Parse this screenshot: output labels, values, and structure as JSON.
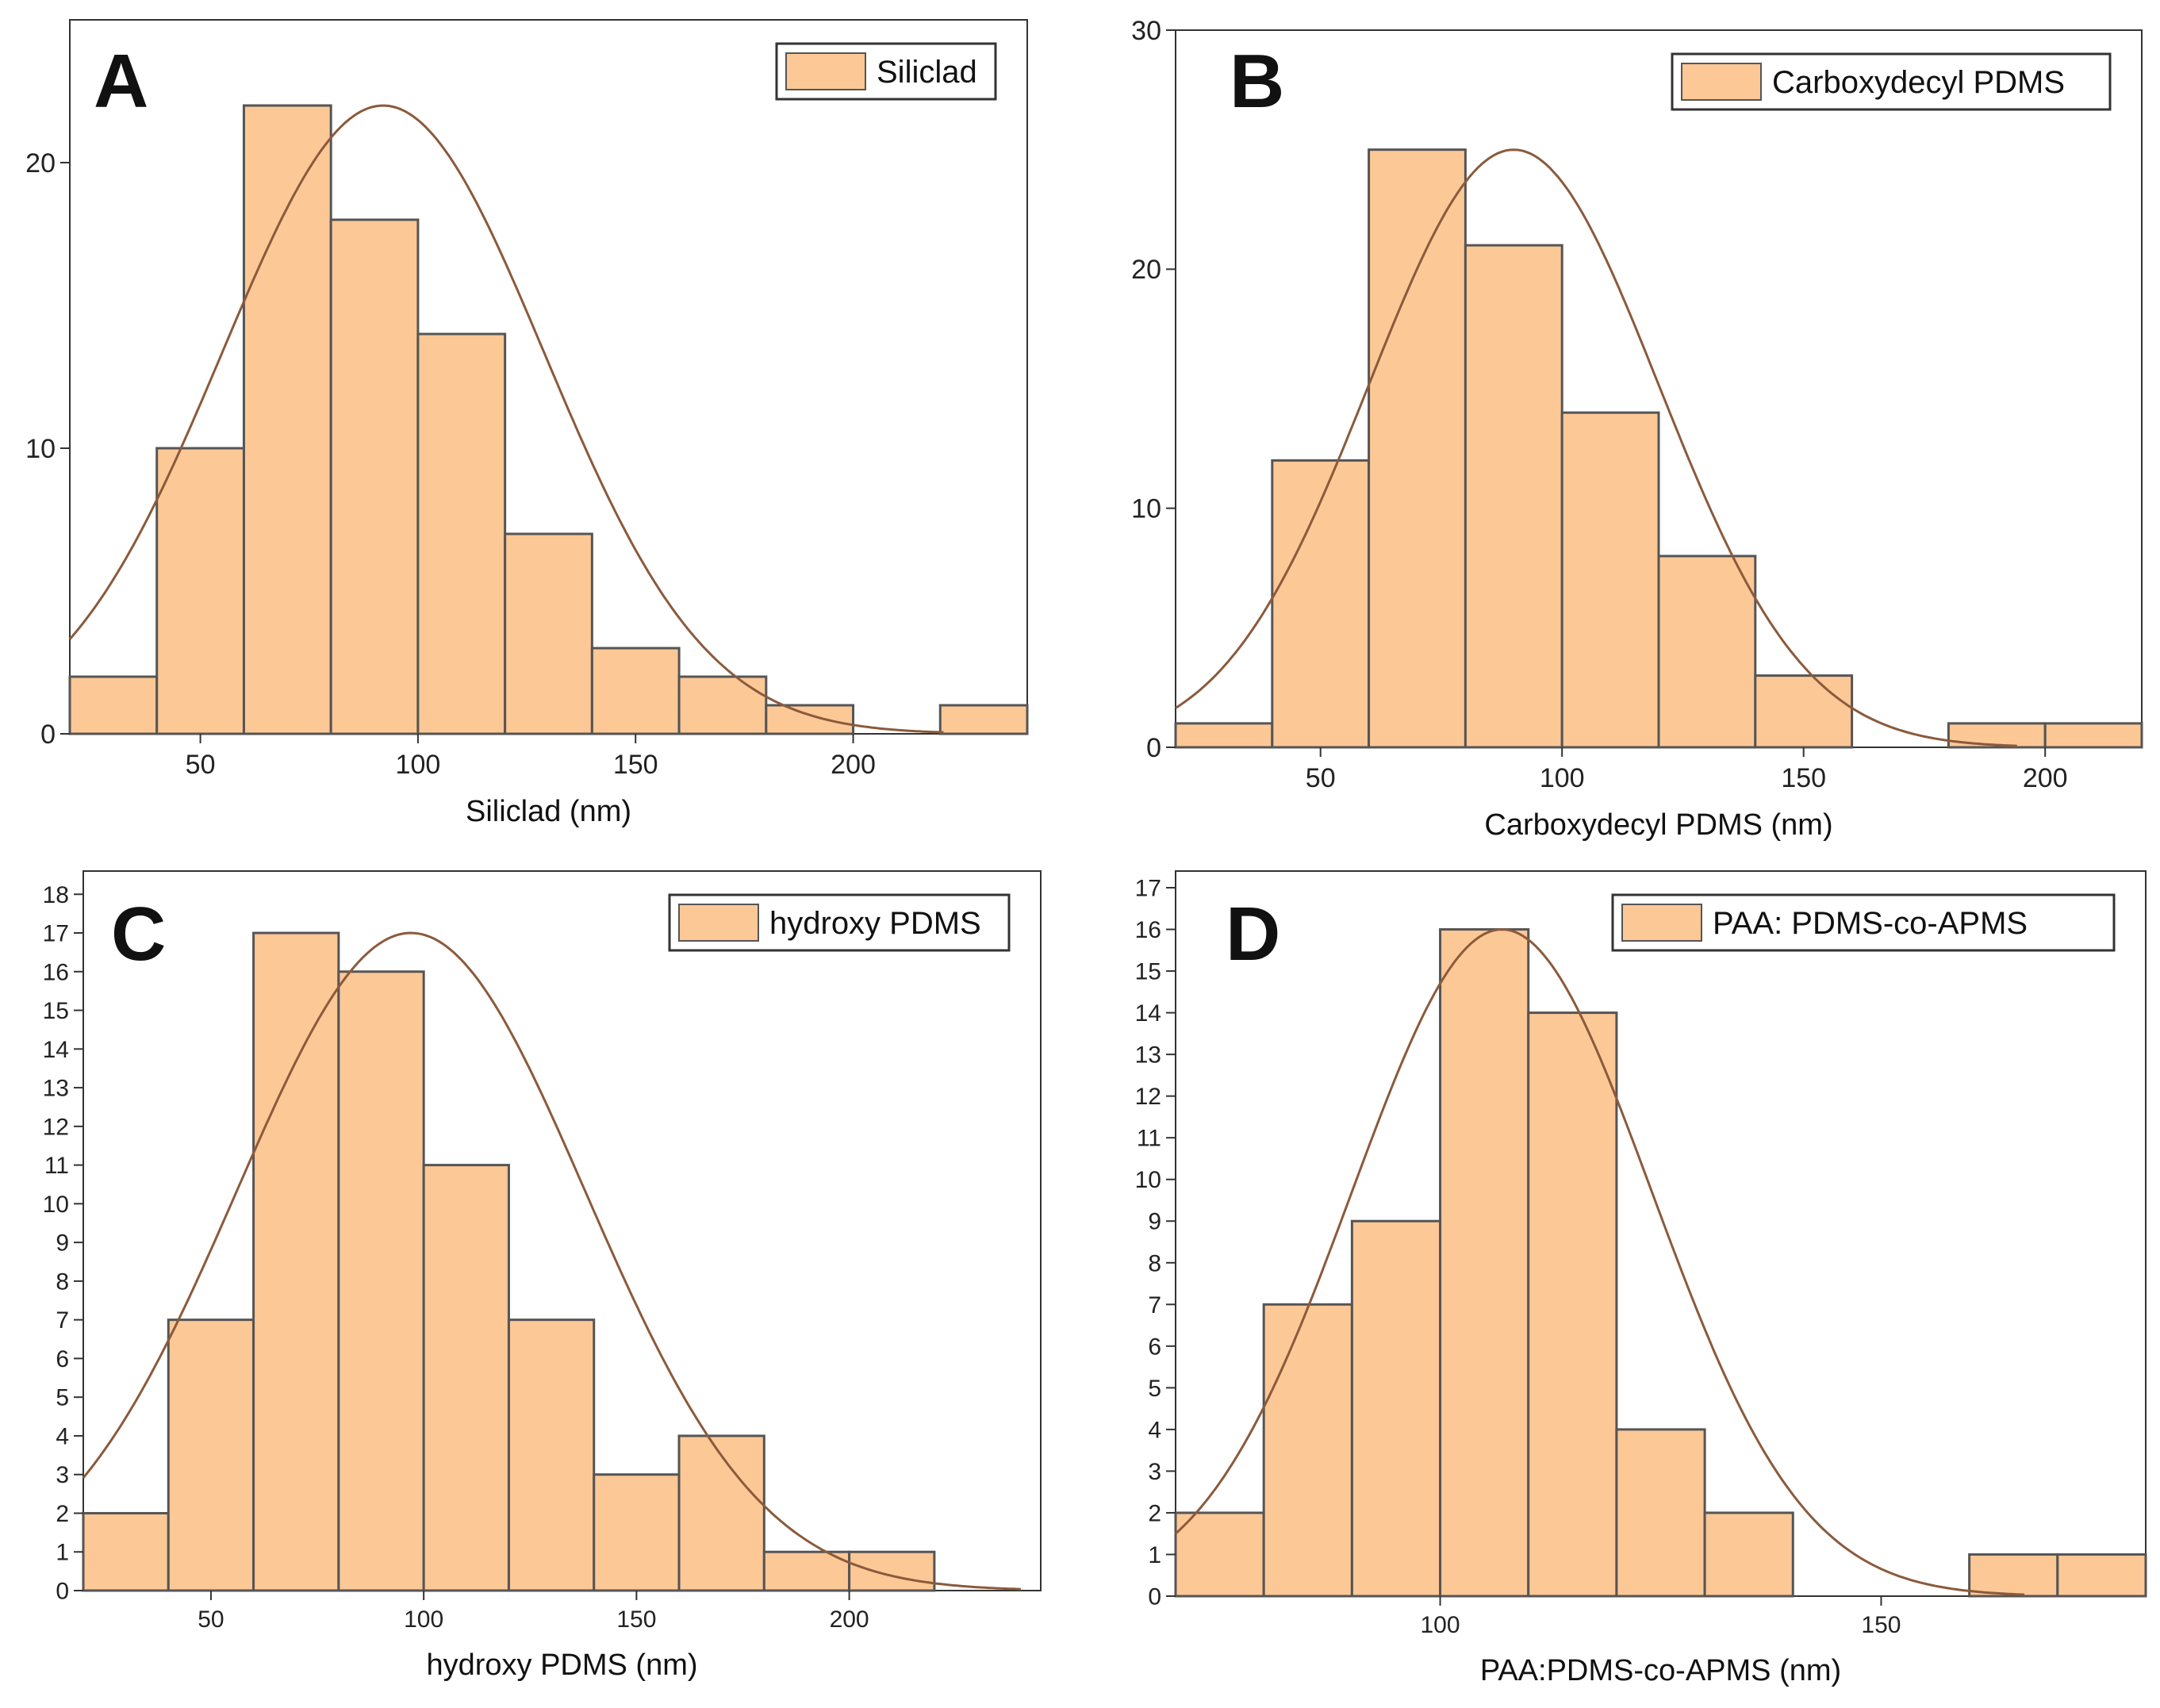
{
  "colors": {
    "bar_fill": "#fcc896",
    "bar_stroke": "#555555",
    "curve": "#8b5a3c",
    "axis": "#333333"
  },
  "chart_data": [
    {
      "panel": "A",
      "type": "bar",
      "title": "",
      "legend": "Siliclad",
      "xlabel": "Siliclad (nm)",
      "ylabel": "",
      "xlim": [
        20,
        240
      ],
      "ylim": [
        0,
        25
      ],
      "xticks": [
        50,
        100,
        150,
        200
      ],
      "yticks": [
        0,
        10,
        20
      ],
      "bins": [
        {
          "x0": 20,
          "x1": 40,
          "count": 2
        },
        {
          "x0": 40,
          "x1": 60,
          "count": 10
        },
        {
          "x0": 60,
          "x1": 80,
          "count": 22
        },
        {
          "x0": 80,
          "x1": 100,
          "count": 18
        },
        {
          "x0": 100,
          "x1": 120,
          "count": 14
        },
        {
          "x0": 120,
          "x1": 140,
          "count": 7
        },
        {
          "x0": 140,
          "x1": 160,
          "count": 3
        },
        {
          "x0": 160,
          "x1": 180,
          "count": 2
        },
        {
          "x0": 180,
          "x1": 200,
          "count": 1
        },
        {
          "x0": 220,
          "x1": 240,
          "count": 1
        }
      ],
      "fit": {
        "type": "gaussian",
        "mean": 92,
        "sd": 37,
        "peak": 22
      }
    },
    {
      "panel": "B",
      "type": "bar",
      "title": "",
      "legend": "Carboxydecyl PDMS",
      "xlabel": "Carboxydecyl PDMS (nm)",
      "ylabel": "",
      "xlim": [
        20,
        220
      ],
      "ylim": [
        0,
        30
      ],
      "xticks": [
        50,
        100,
        150,
        200
      ],
      "yticks": [
        0,
        10,
        20,
        30
      ],
      "bins": [
        {
          "x0": 20,
          "x1": 40,
          "count": 1
        },
        {
          "x0": 40,
          "x1": 60,
          "count": 12
        },
        {
          "x0": 60,
          "x1": 80,
          "count": 25
        },
        {
          "x0": 80,
          "x1": 100,
          "count": 21
        },
        {
          "x0": 100,
          "x1": 120,
          "count": 14
        },
        {
          "x0": 120,
          "x1": 140,
          "count": 8
        },
        {
          "x0": 140,
          "x1": 160,
          "count": 3
        },
        {
          "x0": 180,
          "x1": 200,
          "count": 1
        },
        {
          "x0": 200,
          "x1": 220,
          "count": 1
        }
      ],
      "fit": {
        "type": "gaussian",
        "mean": 90,
        "sd": 30,
        "peak": 25
      }
    },
    {
      "panel": "C",
      "type": "bar",
      "title": "",
      "legend": "hydroxy PDMS",
      "xlabel": "hydroxy PDMS (nm)",
      "ylabel": "",
      "xlim": [
        20,
        245
      ],
      "ylim": [
        0,
        18.6
      ],
      "xticks": [
        50,
        100,
        150,
        200
      ],
      "yticks": [
        0,
        1,
        2,
        3,
        4,
        5,
        6,
        7,
        8,
        9,
        10,
        11,
        12,
        13,
        14,
        15,
        16,
        17,
        18
      ],
      "bins": [
        {
          "x0": 20,
          "x1": 40,
          "count": 2
        },
        {
          "x0": 40,
          "x1": 60,
          "count": 7
        },
        {
          "x0": 60,
          "x1": 80,
          "count": 17
        },
        {
          "x0": 80,
          "x1": 100,
          "count": 16
        },
        {
          "x0": 100,
          "x1": 120,
          "count": 11
        },
        {
          "x0": 120,
          "x1": 140,
          "count": 7
        },
        {
          "x0": 140,
          "x1": 160,
          "count": 3
        },
        {
          "x0": 160,
          "x1": 180,
          "count": 4
        },
        {
          "x0": 180,
          "x1": 200,
          "count": 1
        },
        {
          "x0": 200,
          "x1": 220,
          "count": 1
        }
      ],
      "fit": {
        "type": "gaussian",
        "mean": 97,
        "sd": 41,
        "peak": 17
      }
    },
    {
      "panel": "D",
      "type": "bar",
      "title": "",
      "legend": "PAA: PDMS-co-APMS",
      "xlabel": "PAA:PDMS-co-APMS  (nm)",
      "ylabel": "",
      "xlim": [
        70,
        180
      ],
      "ylim": [
        0,
        17.4
      ],
      "xticks": [
        100,
        150
      ],
      "yticks": [
        0,
        1,
        2,
        3,
        4,
        5,
        6,
        7,
        8,
        9,
        10,
        11,
        12,
        13,
        14,
        15,
        16,
        17
      ],
      "bins": [
        {
          "x0": 70,
          "x1": 80,
          "count": 2
        },
        {
          "x0": 80,
          "x1": 90,
          "count": 7
        },
        {
          "x0": 90,
          "x1": 100,
          "count": 9
        },
        {
          "x0": 100,
          "x1": 110,
          "count": 16
        },
        {
          "x0": 110,
          "x1": 120,
          "count": 14
        },
        {
          "x0": 120,
          "x1": 130,
          "count": 4
        },
        {
          "x0": 130,
          "x1": 140,
          "count": 2
        },
        {
          "x0": 160,
          "x1": 170,
          "count": 1
        },
        {
          "x0": 170,
          "x1": 180,
          "count": 1
        }
      ],
      "fit": {
        "type": "gaussian",
        "mean": 107,
        "sd": 17,
        "peak": 16
      }
    }
  ]
}
